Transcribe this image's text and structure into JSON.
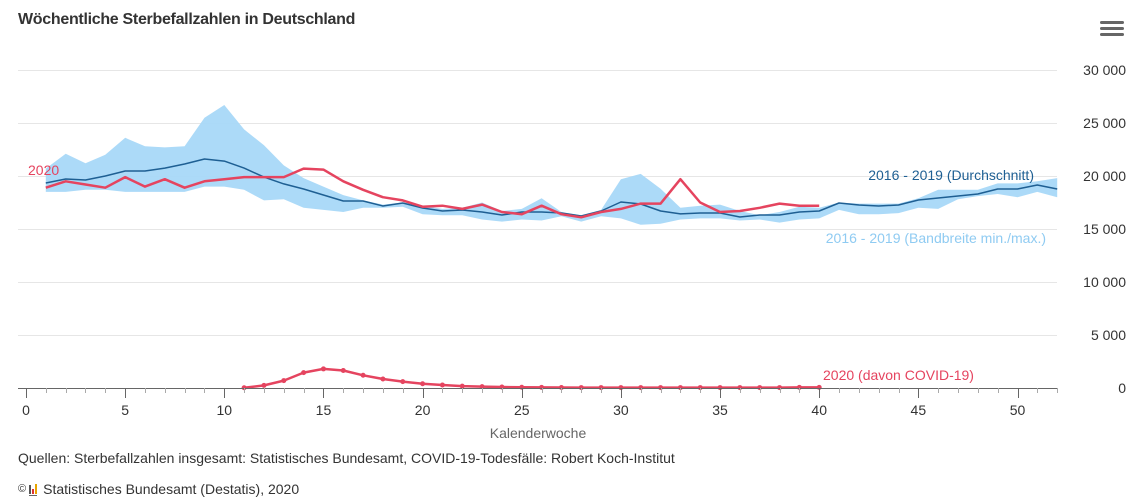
{
  "header": {
    "title": "Wöchentliche Sterbefallzahlen in Deutschland",
    "menu_icon": "hamburger-menu-icon"
  },
  "colors": {
    "line_2020": "#e5445f",
    "line_avg": "#1e5f93",
    "band": "#a8d8f8",
    "label_avg": "#1e5f93",
    "label_band": "#8fcbf2",
    "label_2020": "#e5445f",
    "grid": "#e6e6e6",
    "axis": "#666666"
  },
  "chart_data": {
    "type": "line",
    "title": "Wöchentliche Sterbefallzahlen in Deutschland",
    "xlabel": "Kalenderwoche",
    "ylabel": "",
    "xlim": [
      0,
      52
    ],
    "ylim": [
      0,
      30000
    ],
    "x_ticks": [
      0,
      5,
      10,
      15,
      20,
      25,
      30,
      35,
      40,
      45,
      50
    ],
    "y_ticks": [
      0,
      5000,
      10000,
      15000,
      20000,
      25000,
      30000
    ],
    "y_tick_labels": [
      "0",
      "5 000",
      "10 000",
      "15 000",
      "20 000",
      "25 000",
      "30 000"
    ],
    "grid": true,
    "y_axis_side": "right",
    "series": [
      {
        "name": "2016 - 2019 (Bandbreite min./max.)",
        "type": "arearange",
        "x": [
          1,
          2,
          3,
          4,
          5,
          6,
          7,
          8,
          9,
          10,
          11,
          12,
          13,
          14,
          15,
          16,
          17,
          18,
          19,
          20,
          21,
          22,
          23,
          24,
          25,
          26,
          27,
          28,
          29,
          30,
          31,
          32,
          33,
          34,
          35,
          36,
          37,
          38,
          39,
          40,
          41,
          42,
          43,
          44,
          45,
          46,
          47,
          48,
          49,
          50,
          51,
          52
        ],
        "low": [
          18500,
          18500,
          18700,
          18700,
          18500,
          18500,
          18500,
          18500,
          19000,
          19000,
          18700,
          17700,
          17800,
          17000,
          16800,
          16600,
          17000,
          17000,
          17100,
          16400,
          16300,
          16300,
          15900,
          15700,
          15900,
          15800,
          16200,
          15700,
          16200,
          16000,
          15400,
          15500,
          15900,
          16000,
          16000,
          15800,
          15900,
          15600,
          15900,
          16000,
          16800,
          16400,
          16400,
          16500,
          17000,
          16900,
          17800,
          18100,
          18300,
          18000,
          18500,
          18000
        ],
        "high": [
          20700,
          22100,
          21200,
          22000,
          23600,
          22800,
          22700,
          22800,
          25500,
          26700,
          24400,
          22900,
          21000,
          19800,
          19000,
          18200,
          17700,
          17300,
          17500,
          17200,
          16900,
          17000,
          17500,
          16700,
          16900,
          17900,
          16600,
          16300,
          16800,
          19700,
          20200,
          18800,
          17000,
          17200,
          17300,
          16700,
          16300,
          16600,
          17100,
          17000,
          17500,
          17400,
          17400,
          17400,
          17900,
          18700,
          18700,
          18700,
          19300,
          19300,
          19500,
          19800
        ]
      },
      {
        "name": "2016 - 2019 (Durchschnitt)",
        "type": "line",
        "x": [
          1,
          2,
          3,
          4,
          5,
          6,
          7,
          8,
          9,
          10,
          11,
          12,
          13,
          14,
          15,
          16,
          17,
          18,
          19,
          20,
          21,
          22,
          23,
          24,
          25,
          26,
          27,
          28,
          29,
          30,
          31,
          32,
          33,
          34,
          35,
          36,
          37,
          38,
          39,
          40,
          41,
          42,
          43,
          44,
          45,
          46,
          47,
          48,
          49,
          50,
          51,
          52
        ],
        "values": [
          19340,
          19720,
          19620,
          20000,
          20470,
          20470,
          20750,
          21130,
          21600,
          21410,
          20750,
          19900,
          19250,
          18770,
          18210,
          17640,
          17640,
          17170,
          17450,
          16980,
          16700,
          16790,
          16600,
          16320,
          16600,
          16600,
          16510,
          16230,
          16700,
          17550,
          17360,
          16700,
          16420,
          16510,
          16510,
          16130,
          16320,
          16320,
          16600,
          16700,
          17450,
          17260,
          17170,
          17260,
          17740,
          17920,
          18110,
          18300,
          18770,
          18770,
          19150,
          18770
        ]
      },
      {
        "name": "2020",
        "type": "line",
        "x": [
          1,
          2,
          3,
          4,
          5,
          6,
          7,
          8,
          9,
          10,
          11,
          12,
          13,
          14,
          15,
          16,
          17,
          18,
          19,
          20,
          21,
          22,
          23,
          24,
          25,
          26,
          27,
          28,
          29,
          30,
          31,
          32,
          33,
          34,
          35,
          36,
          37,
          38,
          39,
          40
        ],
        "values": [
          18900,
          19500,
          19200,
          18900,
          19900,
          19000,
          19700,
          18900,
          19500,
          19700,
          19900,
          19900,
          19900,
          20700,
          20600,
          19500,
          18700,
          18000,
          17700,
          17100,
          17200,
          16900,
          17300,
          16600,
          16400,
          17200,
          16400,
          16100,
          16600,
          16900,
          17400,
          17400,
          19700,
          17500,
          16600,
          16700,
          17000,
          17400,
          17200,
          17200
        ]
      },
      {
        "name": "2020 (davon COVID-19)",
        "type": "line",
        "markers": true,
        "x": [
          11,
          12,
          13,
          14,
          15,
          16,
          17,
          18,
          19,
          20,
          21,
          22,
          23,
          24,
          25,
          26,
          27,
          28,
          29,
          30,
          31,
          32,
          33,
          34,
          35,
          36,
          37,
          38,
          39,
          40
        ],
        "values": [
          20,
          250,
          700,
          1450,
          1800,
          1650,
          1200,
          850,
          600,
          400,
          280,
          180,
          130,
          90,
          70,
          60,
          50,
          40,
          40,
          40,
          40,
          40,
          40,
          40,
          40,
          40,
          40,
          40,
          60,
          60
        ]
      }
    ],
    "annotations": [
      {
        "text": "2020",
        "series": "2020",
        "position": "left"
      },
      {
        "text": "2016 - 2019 (Durchschnitt)",
        "series": "2016 - 2019 (Durchschnitt)",
        "position": "right"
      },
      {
        "text": "2016 - 2019 (Bandbreite min./max.)",
        "series": "2016 - 2019 (Bandbreite min./max.)",
        "position": "right"
      },
      {
        "text": "2020 (davon COVID-19)",
        "series": "2020 (davon COVID-19)",
        "position": "right"
      }
    ]
  },
  "footer": {
    "source": "Quellen: Sterbefallzahlen insgesamt: Statistisches Bundesamt, COVID-19-Todesfälle: Robert Koch-Institut",
    "copyright_symbol": "©",
    "credit": "Statistisches Bundesamt (Destatis), 2020"
  }
}
